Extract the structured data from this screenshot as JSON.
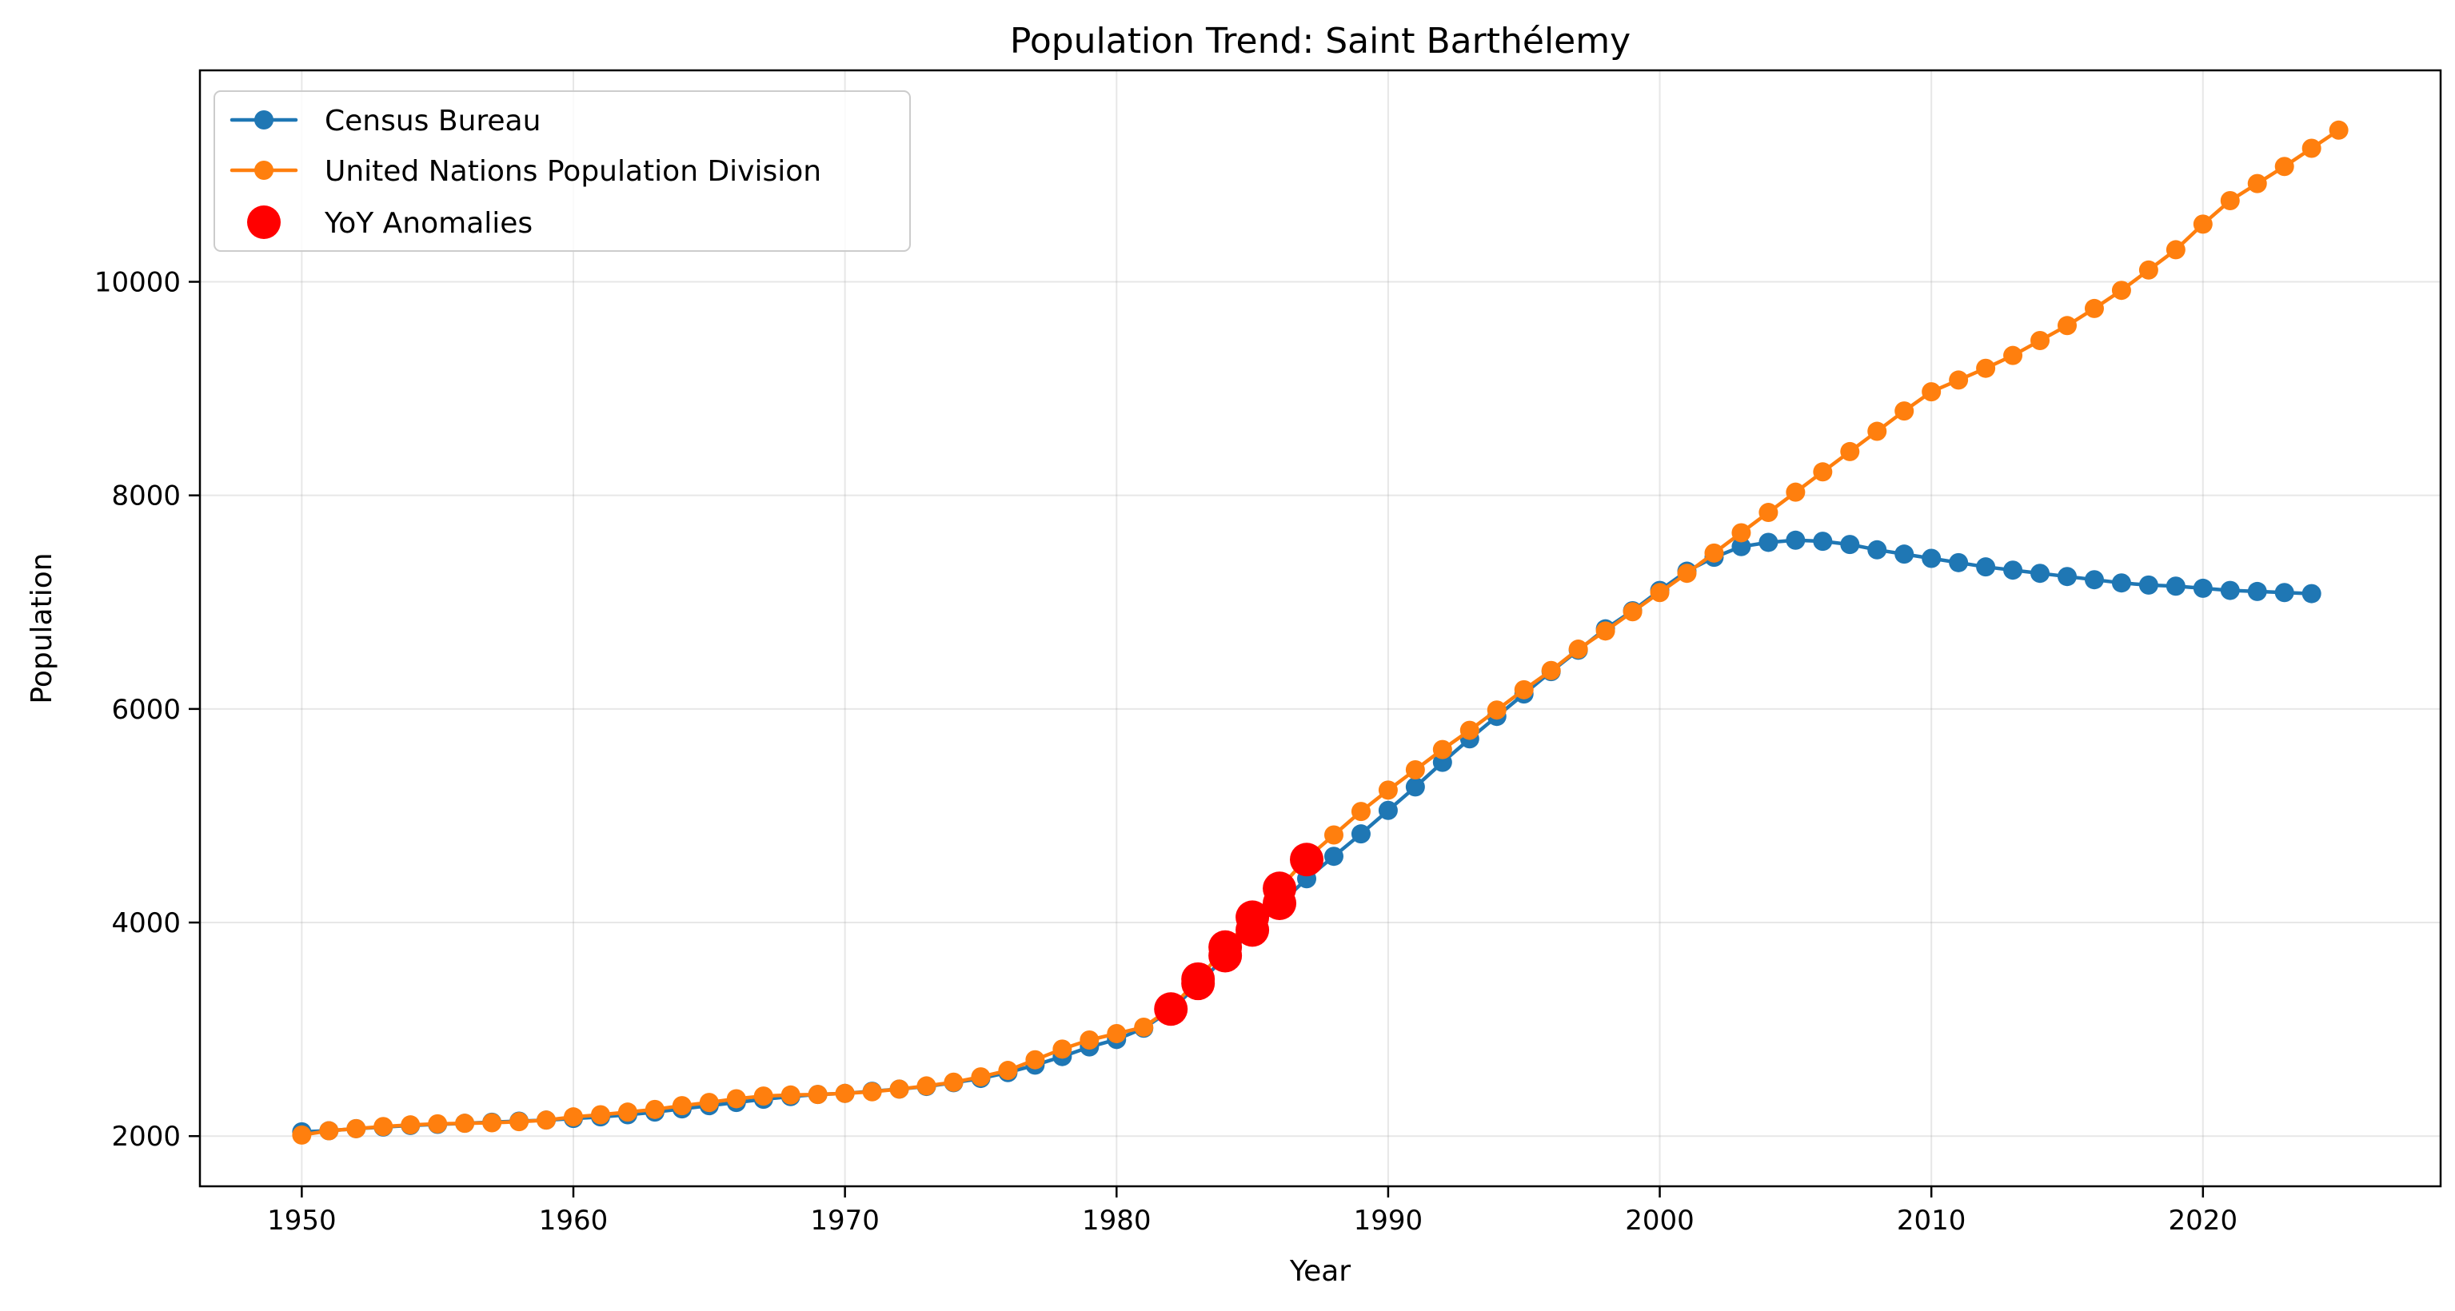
{
  "chart_data": {
    "type": "line",
    "title": "Population Trend: Saint Barthélemy",
    "xlabel": "Year",
    "ylabel": "Population",
    "xlim": [
      1946.25,
      2028.75
    ],
    "ylim": [
      1530,
      11980
    ],
    "x_ticks": [
      1950,
      1960,
      1970,
      1980,
      1990,
      2000,
      2010,
      2020
    ],
    "y_ticks": [
      2000,
      4000,
      6000,
      8000,
      10000
    ],
    "grid": true,
    "legend_position": "top-left",
    "series": [
      {
        "name": "Census Bureau",
        "color": "#1f77b4",
        "x": [
          1950,
          1951,
          1952,
          1953,
          1954,
          1955,
          1956,
          1957,
          1958,
          1959,
          1960,
          1961,
          1962,
          1963,
          1964,
          1965,
          1966,
          1967,
          1968,
          1969,
          1970,
          1971,
          1972,
          1973,
          1974,
          1975,
          1976,
          1977,
          1978,
          1979,
          1980,
          1981,
          1982,
          1983,
          1984,
          1985,
          1986,
          1987,
          1988,
          1989,
          1990,
          1991,
          1992,
          1993,
          1994,
          1995,
          1996,
          1997,
          1998,
          1999,
          2000,
          2001,
          2002,
          2003,
          2004,
          2005,
          2006,
          2007,
          2008,
          2009,
          2010,
          2011,
          2012,
          2013,
          2014,
          2015,
          2016,
          2017,
          2018,
          2019,
          2020,
          2021,
          2022,
          2023,
          2024
        ],
        "values": [
          2040,
          2050,
          2070,
          2085,
          2100,
          2110,
          2120,
          2130,
          2140,
          2150,
          2165,
          2180,
          2200,
          2225,
          2255,
          2285,
          2315,
          2345,
          2370,
          2390,
          2400,
          2420,
          2440,
          2465,
          2500,
          2540,
          2595,
          2665,
          2745,
          2835,
          2905,
          3010,
          3180,
          3420,
          3680,
          3920,
          4170,
          4410,
          4620,
          4830,
          5050,
          5270,
          5500,
          5720,
          5930,
          6140,
          6350,
          6550,
          6750,
          6920,
          7110,
          7290,
          7420,
          7520,
          7560,
          7580,
          7570,
          7540,
          7490,
          7450,
          7410,
          7370,
          7330,
          7300,
          7270,
          7240,
          7210,
          7180,
          7160,
          7150,
          7130,
          7110,
          7100,
          7090,
          7080
        ]
      },
      {
        "name": "United Nations Population Division",
        "color": "#ff7f0e",
        "x": [
          1950,
          1951,
          1952,
          1953,
          1954,
          1955,
          1956,
          1957,
          1958,
          1959,
          1960,
          1961,
          1962,
          1963,
          1964,
          1965,
          1966,
          1967,
          1968,
          1969,
          1970,
          1971,
          1972,
          1973,
          1974,
          1975,
          1976,
          1977,
          1978,
          1979,
          1980,
          1981,
          1982,
          1983,
          1984,
          1985,
          1986,
          1987,
          1988,
          1989,
          1990,
          1991,
          1992,
          1993,
          1994,
          1995,
          1996,
          1997,
          1998,
          1999,
          2000,
          2001,
          2002,
          2003,
          2004,
          2005,
          2006,
          2007,
          2008,
          2009,
          2010,
          2011,
          2012,
          2013,
          2014,
          2015,
          2016,
          2017,
          2018,
          2019,
          2020,
          2021,
          2022,
          2023,
          2024,
          2025
        ],
        "values": [
          2010,
          2050,
          2070,
          2090,
          2105,
          2115,
          2120,
          2125,
          2135,
          2150,
          2180,
          2200,
          2225,
          2250,
          2285,
          2315,
          2350,
          2375,
          2385,
          2390,
          2400,
          2415,
          2440,
          2470,
          2505,
          2555,
          2615,
          2715,
          2815,
          2900,
          2960,
          3020,
          3200,
          3460,
          3770,
          4050,
          4320,
          4600,
          4820,
          5040,
          5240,
          5430,
          5620,
          5800,
          5990,
          6180,
          6360,
          6560,
          6730,
          6910,
          7090,
          7270,
          7460,
          7650,
          7840,
          8030,
          8220,
          8410,
          8600,
          8790,
          8970,
          9080,
          9190,
          9310,
          9450,
          9590,
          9750,
          9920,
          10110,
          10300,
          10540,
          10760,
          10920,
          11080,
          11250,
          11420
        ]
      }
    ],
    "anomalies": {
      "name": "YoY Anomalies",
      "color": "#ff0000",
      "points": [
        {
          "x": 1982,
          "y": 3190
        },
        {
          "x": 1983,
          "y": 3430
        },
        {
          "x": 1983,
          "y": 3470
        },
        {
          "x": 1984,
          "y": 3690
        },
        {
          "x": 1984,
          "y": 3770
        },
        {
          "x": 1985,
          "y": 3930
        },
        {
          "x": 1985,
          "y": 4050
        },
        {
          "x": 1986,
          "y": 4180
        },
        {
          "x": 1986,
          "y": 4320
        },
        {
          "x": 1987,
          "y": 4590
        }
      ]
    }
  }
}
